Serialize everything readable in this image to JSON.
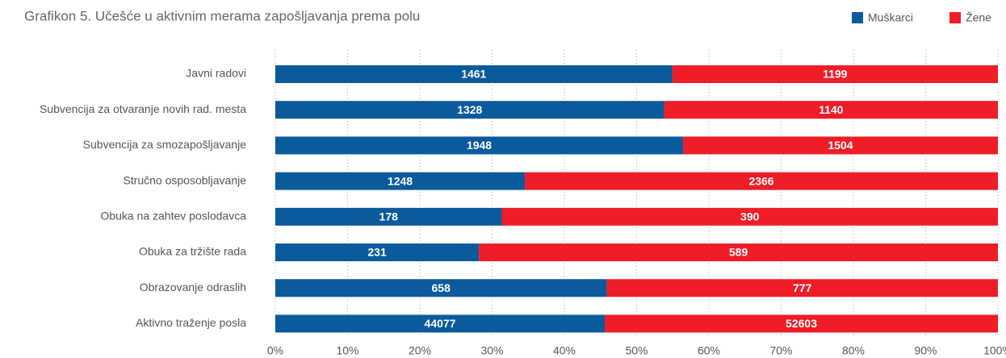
{
  "chart_data": {
    "type": "bar",
    "orientation": "horizontal",
    "stacking": "percent",
    "title": "Grafikon 5. Učešće u aktivnim merama zapošljavanja prema polu",
    "categories": [
      "Javni radovi",
      "Subvencija za otvaranje novih rad. mesta",
      "Subvencija za smozapošljavanje",
      "Stručno osposobljavanje",
      "Obuka na zahtev poslodavca",
      "Obuka za tržište rada",
      "Obrazovanje odraslih",
      "Aktivno traženje posla"
    ],
    "series": [
      {
        "name": "Muškarci",
        "color": "#0a5a9c",
        "values": [
          1461,
          1328,
          1948,
          1248,
          178,
          231,
          658,
          44077
        ]
      },
      {
        "name": "Žene",
        "color": "#ee1d27",
        "values": [
          1199,
          1140,
          1504,
          2366,
          390,
          589,
          777,
          52603
        ]
      }
    ],
    "xlim": [
      0,
      100
    ],
    "xticks": [
      {
        "value": 0,
        "label": "0%"
      },
      {
        "value": 10,
        "label": "10%"
      },
      {
        "value": 20,
        "label": "20%"
      },
      {
        "value": 30,
        "label": "30%"
      },
      {
        "value": 40,
        "label": "40%"
      },
      {
        "value": 50,
        "label": "50%"
      },
      {
        "value": 60,
        "label": "60%"
      },
      {
        "value": 70,
        "label": "70%"
      },
      {
        "value": 80,
        "label": "80%"
      },
      {
        "value": 90,
        "label": "90%"
      },
      {
        "value": 100,
        "label": "100%"
      }
    ],
    "grid": true,
    "legend": "top-right"
  }
}
